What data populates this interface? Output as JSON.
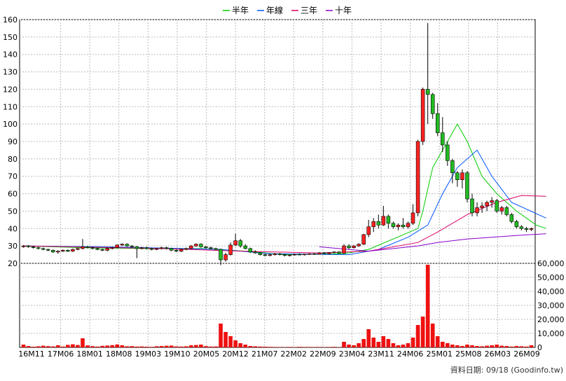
{
  "chart_data": {
    "type": "candlestick",
    "legend": [
      {
        "name": "半年",
        "color": "#00cc00"
      },
      {
        "name": "年線",
        "color": "#0055ff"
      },
      {
        "name": "三年",
        "color": "#dd0066"
      },
      {
        "name": "十年",
        "color": "#8800cc"
      }
    ],
    "price_axis": {
      "ticks": [
        160,
        150,
        140,
        130,
        120,
        110,
        100,
        90,
        80,
        70,
        60,
        50,
        40,
        30,
        20
      ],
      "ylim": [
        20,
        160
      ]
    },
    "volume_axis": {
      "ticks": [
        "60,000",
        "50,000",
        "40,000",
        "30,000",
        "20,000",
        "10,000",
        "0"
      ],
      "ylim": [
        0,
        60000
      ]
    },
    "x_ticks": [
      "16M11",
      "17M06",
      "18M01",
      "18M08",
      "19M03",
      "19M10",
      "20M05",
      "20M12",
      "21M07",
      "22M02",
      "22M09",
      "23M04",
      "23M11",
      "24M06",
      "25M01",
      "25M08",
      "26M03",
      "26M09"
    ],
    "footer": "資料日期: 09/18  (Goodinfo.tw)",
    "candles": [
      [
        29.5,
        30.5,
        29,
        30
      ],
      [
        30,
        30.5,
        29,
        29.5
      ],
      [
        29.5,
        30,
        28.5,
        29
      ],
      [
        29,
        29.5,
        28,
        28.5
      ],
      [
        28.5,
        29,
        27.5,
        28
      ],
      [
        28,
        28.5,
        27,
        27.5
      ],
      [
        27.5,
        28,
        26,
        26.5
      ],
      [
        26.5,
        27.5,
        25.5,
        27
      ],
      [
        27,
        28,
        26.5,
        27.5
      ],
      [
        27.5,
        28,
        26.5,
        27
      ],
      [
        27,
        28.5,
        26.5,
        28
      ],
      [
        28,
        29,
        27.5,
        28.5
      ],
      [
        28.5,
        34,
        28,
        29.5
      ],
      [
        29.5,
        30,
        28.5,
        29
      ],
      [
        29,
        29.5,
        28,
        28.5
      ],
      [
        28.5,
        29,
        27.5,
        28
      ],
      [
        28,
        28.5,
        27,
        27.5
      ],
      [
        27.5,
        29,
        27,
        28.5
      ],
      [
        28.5,
        29.5,
        28,
        29
      ],
      [
        29,
        31,
        28.5,
        30.5
      ],
      [
        30.5,
        31.5,
        30,
        31
      ],
      [
        31,
        31.5,
        29.5,
        30
      ],
      [
        30,
        30.5,
        29,
        29.5
      ],
      [
        29.5,
        30,
        23,
        28.5
      ],
      [
        28.5,
        29.5,
        28,
        29
      ],
      [
        29,
        29.5,
        28,
        28.5
      ],
      [
        28.5,
        29,
        27.5,
        28
      ],
      [
        28,
        29,
        27.5,
        28.5
      ],
      [
        28.5,
        29.5,
        28,
        29
      ],
      [
        29,
        29.5,
        28,
        28.5
      ],
      [
        28.5,
        29,
        27,
        27.5
      ],
      [
        27.5,
        28,
        26.5,
        27
      ],
      [
        27,
        28.5,
        26.5,
        28
      ],
      [
        28,
        29,
        27.5,
        28.5
      ],
      [
        28.5,
        30.5,
        28,
        30
      ],
      [
        30,
        31.5,
        29.5,
        31
      ],
      [
        31,
        31.5,
        29,
        29.5
      ],
      [
        29.5,
        30,
        28.5,
        29
      ],
      [
        29,
        29.5,
        28,
        28.5
      ],
      [
        28.5,
        29,
        27.5,
        28
      ],
      [
        28,
        28.5,
        19,
        22
      ],
      [
        22,
        26,
        21,
        25
      ],
      [
        25,
        32,
        24.5,
        30.5
      ],
      [
        30.5,
        37,
        30,
        33
      ],
      [
        33,
        34,
        29,
        30
      ],
      [
        30,
        31,
        28,
        28.5
      ],
      [
        28.5,
        29,
        26,
        26.5
      ],
      [
        26.5,
        27.5,
        25.5,
        26
      ],
      [
        26,
        26.5,
        24.5,
        25
      ],
      [
        25,
        25.5,
        24,
        24.5
      ],
      [
        24.5,
        25.5,
        24,
        25
      ],
      [
        25,
        26,
        24.5,
        25.5
      ],
      [
        25.5,
        26,
        24.5,
        25
      ],
      [
        25,
        25.5,
        24,
        24.5
      ],
      [
        24.5,
        25,
        24,
        24.8
      ],
      [
        24.8,
        25.5,
        24.5,
        25.2
      ],
      [
        25.2,
        25.8,
        24.8,
        25
      ],
      [
        25,
        25.5,
        24.5,
        25.3
      ],
      [
        25.3,
        25.8,
        25,
        25.5
      ],
      [
        25.5,
        26,
        25,
        25.2
      ],
      [
        25.2,
        26.5,
        25,
        26
      ],
      [
        26,
        26.5,
        25.2,
        25.5
      ],
      [
        25.5,
        26.5,
        25,
        26.2
      ],
      [
        26.2,
        27,
        25.8,
        26.5
      ],
      [
        26.5,
        27,
        25.5,
        25.8
      ],
      [
        25.8,
        31,
        25.5,
        30
      ],
      [
        30,
        31,
        28,
        29
      ],
      [
        29,
        30.5,
        28.5,
        30
      ],
      [
        30,
        31.5,
        29.5,
        31
      ],
      [
        31,
        37,
        30.5,
        36.5
      ],
      [
        36.5,
        45,
        35,
        41
      ],
      [
        41,
        46,
        38,
        44
      ],
      [
        44,
        48,
        40,
        42
      ],
      [
        42,
        53,
        41.5,
        47
      ],
      [
        47,
        48,
        40,
        43
      ],
      [
        43,
        44,
        40,
        41
      ],
      [
        41,
        43,
        39,
        42
      ],
      [
        42,
        46,
        40,
        41
      ],
      [
        41,
        44,
        40,
        43
      ],
      [
        43,
        54,
        42,
        49
      ],
      [
        49,
        91,
        47,
        90
      ],
      [
        90,
        121,
        88,
        120
      ],
      [
        120,
        158,
        100,
        117
      ],
      [
        117,
        118,
        103,
        106
      ],
      [
        106,
        112,
        93,
        95
      ],
      [
        95,
        104,
        84,
        88
      ],
      [
        88,
        90,
        76,
        79
      ],
      [
        79,
        80,
        66,
        72
      ],
      [
        72,
        73,
        64,
        68
      ],
      [
        68,
        74,
        63,
        72
      ],
      [
        72,
        73,
        55,
        57
      ],
      [
        57,
        60,
        47,
        49
      ],
      [
        49,
        55,
        47,
        52
      ],
      [
        52,
        55,
        49,
        53
      ],
      [
        53,
        56,
        50,
        55
      ],
      [
        55,
        58,
        52,
        56
      ],
      [
        56,
        57,
        49,
        50
      ],
      [
        50,
        53,
        48,
        52
      ],
      [
        52,
        53,
        47,
        48
      ],
      [
        48,
        49,
        43,
        44
      ],
      [
        44,
        45,
        40,
        41
      ],
      [
        41,
        42,
        39,
        40
      ],
      [
        40,
        41,
        38,
        39.5
      ],
      [
        39.5,
        40.5,
        38.5,
        40
      ]
    ],
    "volumes": [
      2000,
      1000,
      500,
      800,
      1200,
      900,
      700,
      1500,
      600,
      1800,
      2200,
      1700,
      6500,
      1400,
      900,
      600,
      1100,
      1300,
      1600,
      2100,
      1500,
      800,
      900,
      600,
      700,
      500,
      400,
      800,
      1000,
      1200,
      1300,
      700,
      600,
      800,
      1500,
      1700,
      2000,
      900,
      600,
      700,
      17000,
      11000,
      8000,
      5000,
      3000,
      2000,
      1000,
      800,
      600,
      500,
      400,
      300,
      200,
      200,
      300,
      200,
      400,
      300,
      300,
      200,
      300,
      200,
      300,
      400,
      200,
      4000,
      2000,
      1500,
      3000,
      6000,
      13000,
      7000,
      4000,
      8000,
      6000,
      3000,
      1500,
      2000,
      3000,
      7000,
      16000,
      22000,
      59000,
      17000,
      8000,
      4000,
      3000,
      2000,
      1500,
      1000,
      2000,
      1500,
      1000,
      800,
      1200,
      1500,
      2000,
      1200,
      1000,
      600,
      1000,
      800,
      600,
      1500
    ],
    "ma_half": [
      [
        0,
        30
      ],
      [
        12,
        29
      ],
      [
        24,
        28.5
      ],
      [
        36,
        28.5
      ],
      [
        45,
        27
      ],
      [
        53,
        25
      ],
      [
        65,
        25.5
      ],
      [
        70,
        28
      ],
      [
        80,
        40
      ],
      [
        81,
        50
      ],
      [
        83,
        75
      ],
      [
        85,
        85
      ],
      [
        88,
        100
      ],
      [
        90,
        90
      ],
      [
        93,
        70
      ],
      [
        96,
        60
      ],
      [
        100,
        50
      ],
      [
        104,
        42
      ],
      [
        106,
        40
      ]
    ],
    "ma_year": [
      [
        0,
        30
      ],
      [
        16,
        29.5
      ],
      [
        40,
        28
      ],
      [
        50,
        25.5
      ],
      [
        66,
        25
      ],
      [
        72,
        28
      ],
      [
        78,
        35
      ],
      [
        82,
        42
      ],
      [
        85,
        60
      ],
      [
        88,
        75
      ],
      [
        92,
        85
      ],
      [
        95,
        70
      ],
      [
        99,
        55
      ],
      [
        106,
        46
      ]
    ],
    "ma_3y": [
      [
        0,
        30
      ],
      [
        28,
        28.5
      ],
      [
        44,
        27
      ],
      [
        60,
        26
      ],
      [
        70,
        27
      ],
      [
        80,
        32
      ],
      [
        84,
        38
      ],
      [
        90,
        48
      ],
      [
        96,
        55
      ],
      [
        101,
        59
      ],
      [
        106,
        58.5
      ]
    ],
    "ma_10y": [
      [
        60,
        29.5
      ],
      [
        70,
        27
      ],
      [
        80,
        30
      ],
      [
        84,
        32
      ],
      [
        90,
        34
      ],
      [
        100,
        36
      ],
      [
        106,
        37
      ]
    ]
  }
}
